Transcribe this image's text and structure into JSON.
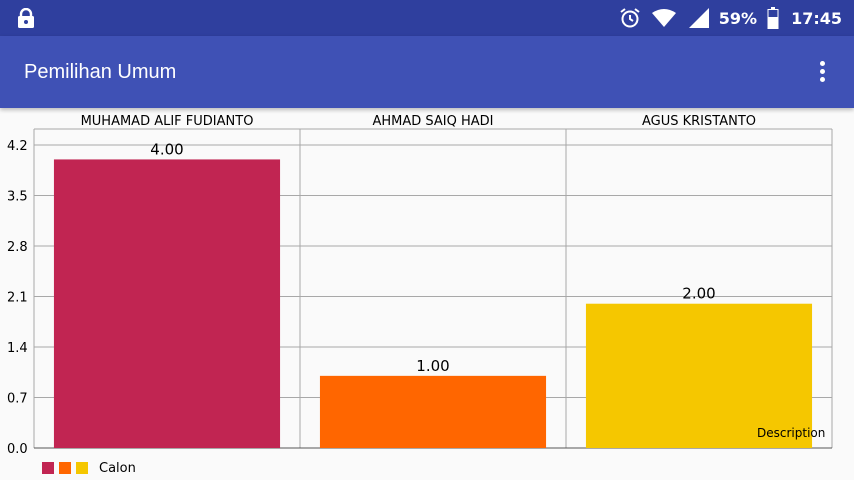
{
  "status_bar": {
    "battery_percent": "59%",
    "time": "17:45",
    "icons": [
      "lock-icon",
      "alarm-icon",
      "wifi-icon",
      "signal-icon",
      "battery-icon"
    ]
  },
  "app_bar": {
    "title": "Pemilihan Umum",
    "menu_icon": "overflow-menu-icon"
  },
  "chart_data": {
    "type": "bar",
    "categories": [
      "MUHAMAD ALIF FUDIANTO",
      "AHMAD SAIQ HADI",
      "AGUS KRISTANTO"
    ],
    "series": [
      {
        "name": "Calon",
        "values": [
          4.0,
          1.0,
          2.0
        ],
        "colors": [
          "#c12552",
          "#ff6600",
          "#f5c700"
        ]
      }
    ],
    "value_labels": [
      "4.00",
      "1.00",
      "2.00"
    ],
    "y_ticks": [
      "0.0",
      "0.7",
      "1.4",
      "2.1",
      "2.8",
      "3.5",
      "4.2"
    ],
    "ylim": [
      0,
      4.2
    ],
    "grid": true,
    "legend_position": "bottom-left",
    "description": "Description"
  }
}
